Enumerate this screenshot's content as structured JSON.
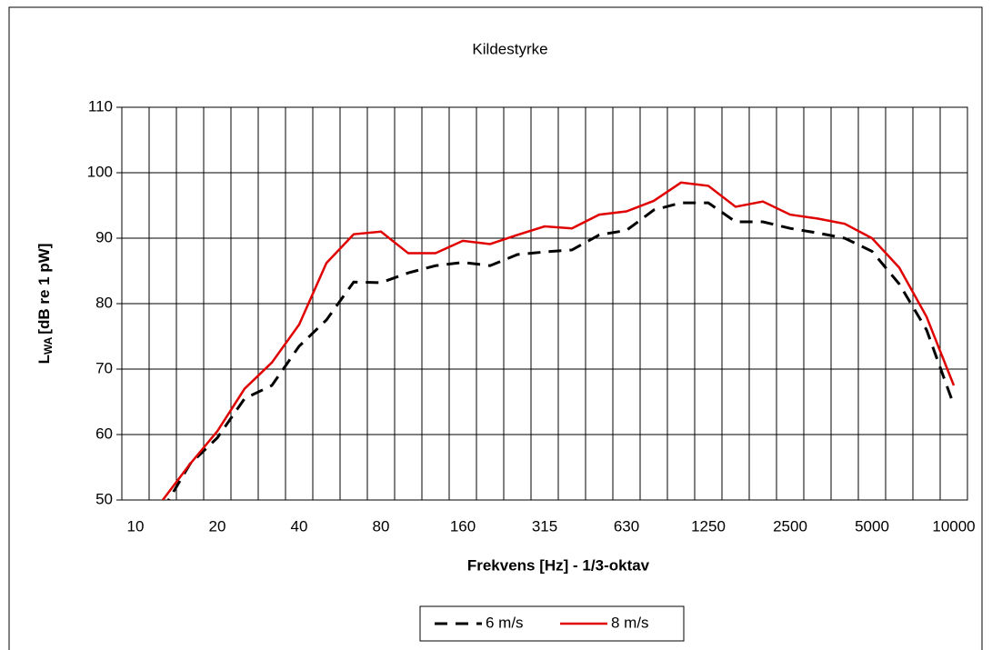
{
  "chart_data": {
    "type": "line",
    "title": "Kildestyrke",
    "x_label": "Frekvens [Hz]  - 1/3-oktav",
    "y_label": {
      "symbol": "L",
      "subscript": "WA",
      "unit": "[dB re 1 pW]"
    },
    "categories": [
      "10",
      null,
      null,
      "20",
      null,
      null,
      "40",
      null,
      null,
      "80",
      null,
      null,
      "160",
      null,
      null,
      "315",
      null,
      null,
      "630",
      null,
      null,
      "1250",
      null,
      null,
      "2500",
      null,
      null,
      "5000",
      null,
      null,
      "10000"
    ],
    "series": [
      {
        "name": "6 m/s",
        "color": "#000000",
        "dash": true,
        "values": [
          null,
          48.5,
          55.5,
          59.5,
          65.5,
          67.5,
          73.5,
          77.5,
          83.3,
          83.2,
          84.7,
          85.8,
          86.3,
          85.8,
          87.5,
          87.9,
          88.2,
          90.5,
          91.2,
          94.3,
          95.4,
          95.4,
          92.5,
          92.5,
          91.5,
          90.8,
          90,
          88,
          83,
          76,
          64.5
        ]
      },
      {
        "name": "8 m/s",
        "color": "#e00000",
        "dash": false,
        "values": [
          null,
          50,
          55.5,
          60.5,
          67,
          71,
          76.8,
          86.2,
          90.6,
          91,
          87.7,
          87.7,
          89.6,
          89.1,
          90.5,
          91.8,
          91.5,
          93.6,
          94.1,
          95.7,
          98.5,
          98,
          94.8,
          95.6,
          93.6,
          93,
          92.2,
          90,
          85.5,
          78,
          67.5
        ]
      }
    ],
    "ylim": [
      50,
      110
    ],
    "yticks": [
      50,
      60,
      70,
      80,
      90,
      100,
      110
    ],
    "grid": true,
    "legend": "bottom"
  }
}
